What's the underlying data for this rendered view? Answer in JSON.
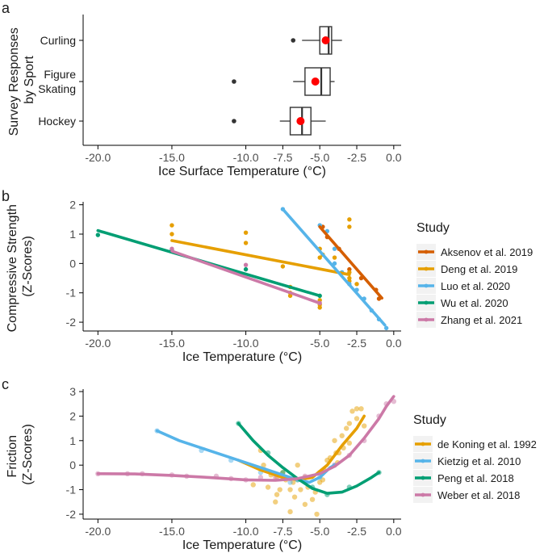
{
  "chart_data": [
    {
      "panel": "a",
      "type": "boxplot",
      "xlabel": "Ice Surface Temperature (°C)",
      "ylabel": "Survey Responses\nby Sport",
      "xlim": [
        -21,
        0.5
      ],
      "xticks": [
        -20.0,
        -15.0,
        -10.0,
        -7.5,
        -5.0,
        -2.5,
        0.0
      ],
      "xtick_labels": [
        "-20.0",
        "-15.0",
        "-10.0",
        "-7.5",
        "-5.0",
        "-2.5",
        "0.0"
      ],
      "categories": [
        "Curling",
        "Figure\nSkating",
        "Hockey"
      ],
      "boxes": [
        {
          "category": "Curling",
          "whisker_low": -6.2,
          "q1": -5.0,
          "median": -4.4,
          "q3": -4.2,
          "whisker_high": -3.5,
          "mean": -4.6,
          "outliers": [
            -6.8
          ]
        },
        {
          "category": "Figure\nSkating",
          "whisker_low": -6.8,
          "q1": -6.0,
          "median": -4.9,
          "q3": -4.3,
          "whisker_high": -4.0,
          "mean": -5.3,
          "outliers": [
            -10.8
          ]
        },
        {
          "category": "Hockey",
          "whisker_low": -7.7,
          "q1": -7.0,
          "median": -6.2,
          "q3": -5.6,
          "whisker_high": -4.6,
          "mean": -6.3,
          "outliers": [
            -10.8
          ]
        }
      ],
      "mean_color": "#ff0000"
    },
    {
      "panel": "b",
      "type": "scatter+line",
      "xlabel": "Ice Temperature (°C)",
      "ylabel": "Compressive Strength\n(Z-Scores)",
      "xlim": [
        -21,
        0.5
      ],
      "ylim": [
        -2.3,
        2.1
      ],
      "xticks": [
        -20.0,
        -15.0,
        -10.0,
        -5.0,
        -2.5,
        0.0
      ],
      "xtick_labels": [
        "-20.0",
        "-15.0",
        "-10.0",
        "-5.0",
        "-2.5",
        "0.0"
      ],
      "yticks": [
        -2,
        -1,
        0,
        1,
        2
      ],
      "legend_title": "Study",
      "series": [
        {
          "name": "Aksenov et al. 2019",
          "color": "#d55e00",
          "points": [
            [
              -4.8,
              1.25
            ],
            [
              -4.5,
              0.9
            ],
            [
              -3.7,
              0.5
            ],
            [
              -3.0,
              -0.2
            ],
            [
              -2.2,
              -0.5
            ],
            [
              -1.2,
              -0.9
            ],
            [
              -1.0,
              -1.2
            ]
          ],
          "line": [
            [
              -5.0,
              1.25
            ],
            [
              -0.8,
              -1.18
            ]
          ]
        },
        {
          "name": "Deng et al. 2019",
          "color": "#e69f00",
          "points": [
            [
              -15,
              1.3
            ],
            [
              -15,
              1.0
            ],
            [
              -10,
              1.05
            ],
            [
              -10,
              0.7
            ],
            [
              -7,
              -0.8
            ],
            [
              -7,
              -1.1
            ],
            [
              -7,
              -1.0
            ],
            [
              -7.5,
              -0.1
            ],
            [
              -5,
              0.5
            ],
            [
              -5,
              0.2
            ],
            [
              -5,
              -1.4
            ],
            [
              -5,
              -1.5
            ],
            [
              -5,
              -1.25
            ],
            [
              -4.8,
              0.3
            ],
            [
              -3,
              1.5
            ],
            [
              -3,
              1.25
            ],
            [
              -3,
              -0.3
            ],
            [
              -3,
              -0.5
            ],
            [
              -2.5,
              -0.7
            ],
            [
              -3,
              -0.6
            ],
            [
              -4.0,
              0.2
            ]
          ],
          "line": [
            [
              -15,
              0.78
            ],
            [
              -3,
              -0.38
            ]
          ]
        },
        {
          "name": "Luo et al. 2020",
          "color": "#56b4e9",
          "points": [
            [
              -7.5,
              1.85
            ],
            [
              -5,
              1.3
            ],
            [
              -4.5,
              1.1
            ],
            [
              -4,
              0.5
            ],
            [
              -4,
              0.0
            ],
            [
              -3.5,
              -0.3
            ],
            [
              -3,
              -0.7
            ],
            [
              -2.5,
              -0.9
            ],
            [
              -2,
              -1.2
            ],
            [
              -1.5,
              -1.6
            ],
            [
              -1,
              -1.9
            ],
            [
              -0.5,
              -2.2
            ]
          ],
          "line": [
            [
              -7.5,
              1.85
            ],
            [
              -0.6,
              -2.1
            ]
          ]
        },
        {
          "name": "Wu et al. 2020",
          "color": "#009e73",
          "points": [
            [
              -20,
              0.97
            ],
            [
              -15,
              0.45
            ],
            [
              -10,
              -0.2
            ],
            [
              -5,
              -1.1
            ]
          ],
          "line": [
            [
              -20,
              1.12
            ],
            [
              -5,
              -1.1
            ]
          ]
        },
        {
          "name": "Zhang et al. 2021",
          "color": "#cc79a7",
          "points": [
            [
              -15,
              0.5
            ],
            [
              -10,
              -0.05
            ],
            [
              -5,
              -1.35
            ]
          ],
          "line": [
            [
              -15,
              0.42
            ],
            [
              -5,
              -1.35
            ]
          ]
        }
      ]
    },
    {
      "panel": "c",
      "type": "scatter+loess",
      "xlabel": "Ice Temperature (°C)",
      "ylabel": "Friction\n(Z-Scores)",
      "xlim": [
        -21,
        0.5
      ],
      "ylim": [
        -2.2,
        3.1
      ],
      "xticks": [
        -20.0,
        -15.0,
        -10.0,
        -7.5,
        -5.0,
        -2.5,
        0.0
      ],
      "xtick_labels": [
        "-20.0",
        "-15.0",
        "-10.0",
        "-7.5",
        "-5.0",
        "-2.5",
        "0.0"
      ],
      "yticks": [
        -2,
        -1,
        0,
        1,
        2,
        3
      ],
      "legend_title": "Study",
      "series": [
        {
          "name": "de Koning et al. 1992",
          "color": "#e69f00",
          "points": [
            [
              -9.5,
              -0.8
            ],
            [
              -9,
              0.6
            ],
            [
              -8.8,
              0.0
            ],
            [
              -8.5,
              -0.9
            ],
            [
              -8.3,
              -0.4
            ],
            [
              -8,
              -1.5
            ],
            [
              -7.9,
              -1.2
            ],
            [
              -7.7,
              -1.0
            ],
            [
              -7.5,
              -0.3
            ],
            [
              -7.3,
              -0.6
            ],
            [
              -7,
              -1.9
            ],
            [
              -7,
              -1.0
            ],
            [
              -6.8,
              -0.7
            ],
            [
              -6.5,
              0.0
            ],
            [
              -6.3,
              -1.0
            ],
            [
              -6,
              -1.6
            ],
            [
              -6,
              -0.5
            ],
            [
              -5.8,
              -0.9
            ],
            [
              -5.5,
              -1.4
            ],
            [
              -5.3,
              -1.1
            ],
            [
              -5.2,
              -2.0
            ],
            [
              -5,
              -0.3
            ],
            [
              -5,
              -0.7
            ],
            [
              -4.8,
              -0.6
            ],
            [
              -4.5,
              0.2
            ],
            [
              -4.3,
              0.3
            ],
            [
              -4.0,
              1.0
            ],
            [
              -3.9,
              0.5
            ],
            [
              -3.8,
              0.1
            ],
            [
              -3.5,
              1.2
            ],
            [
              -3.4,
              0.7
            ],
            [
              -3.2,
              1.5
            ],
            [
              -3,
              1.7
            ],
            [
              -3,
              0.9
            ],
            [
              -2.8,
              2.2
            ],
            [
              -2.5,
              2.3
            ],
            [
              -2.5,
              1.9
            ],
            [
              -2.2,
              2.3
            ],
            [
              -2.0,
              1.6
            ],
            [
              -8.7,
              -0.2
            ],
            [
              -6.7,
              -1.3
            ],
            [
              -7.9,
              -0.5
            ],
            [
              -4.7,
              -0.2
            ],
            [
              -3.7,
              0.5
            ]
          ],
          "line": [
            [
              -10.5,
              0.2
            ],
            [
              -9,
              -0.2
            ],
            [
              -7.5,
              -0.5
            ],
            [
              -6.5,
              -0.6
            ],
            [
              -5.5,
              -0.5
            ],
            [
              -4.5,
              0.0
            ],
            [
              -3.5,
              0.8
            ],
            [
              -2.5,
              1.5
            ],
            [
              -2.0,
              2.0
            ]
          ]
        },
        {
          "name": "Kietzig et al. 2010",
          "color": "#56b4e9",
          "points": [
            [
              -16,
              1.4
            ],
            [
              -13,
              0.6
            ],
            [
              -11,
              0.2
            ],
            [
              -9,
              -0.3
            ],
            [
              -7,
              -0.7
            ],
            [
              -5,
              -0.5
            ],
            [
              -4,
              0.0
            ]
          ],
          "line": [
            [
              -16,
              1.4
            ],
            [
              -14.5,
              1.0
            ],
            [
              -13,
              0.7
            ],
            [
              -11,
              0.3
            ],
            [
              -9,
              -0.1
            ],
            [
              -7.5,
              -0.4
            ],
            [
              -6.5,
              -0.6
            ],
            [
              -5.7,
              -0.7
            ],
            [
              -5,
              -0.5
            ],
            [
              -4.3,
              -0.1
            ],
            [
              -4.0,
              0.0
            ]
          ]
        },
        {
          "name": "Peng et al. 2018",
          "color": "#009e73",
          "points": [
            [
              -10.5,
              1.7
            ],
            [
              -8.5,
              0.5
            ],
            [
              -7.5,
              -0.3
            ],
            [
              -6.5,
              -0.6
            ],
            [
              -5.5,
              -0.9
            ],
            [
              -4.5,
              -1.2
            ],
            [
              -3,
              -0.9
            ],
            [
              -1,
              -0.3
            ]
          ],
          "line": [
            [
              -10.5,
              1.7
            ],
            [
              -9.5,
              1.0
            ],
            [
              -8.5,
              0.4
            ],
            [
              -7.5,
              -0.1
            ],
            [
              -6.5,
              -0.55
            ],
            [
              -5.5,
              -0.95
            ],
            [
              -4.5,
              -1.15
            ],
            [
              -3.5,
              -1.1
            ],
            [
              -2.5,
              -0.85
            ],
            [
              -1.5,
              -0.5
            ],
            [
              -1.0,
              -0.3
            ]
          ]
        },
        {
          "name": "Weber et al. 2018",
          "color": "#cc79a7",
          "points": [
            [
              -20,
              -0.35
            ],
            [
              -18,
              -0.35
            ],
            [
              -17,
              -0.35
            ],
            [
              -15,
              -0.4
            ],
            [
              -14,
              -0.45
            ],
            [
              -12,
              -0.45
            ],
            [
              -11,
              -0.55
            ],
            [
              -10,
              -0.6
            ],
            [
              -9,
              -0.5
            ],
            [
              -8,
              -0.5
            ],
            [
              -7,
              -0.55
            ],
            [
              -6,
              -0.45
            ],
            [
              -5,
              -0.3
            ],
            [
              -4,
              0.0
            ],
            [
              -3,
              0.4
            ],
            [
              -2,
              1.0
            ],
            [
              -1,
              2.0
            ],
            [
              -0.5,
              2.5
            ],
            [
              0,
              2.6
            ]
          ],
          "line": [
            [
              -20,
              -0.35
            ],
            [
              -17.5,
              -0.36
            ],
            [
              -15,
              -0.42
            ],
            [
              -12.5,
              -0.5
            ],
            [
              -10,
              -0.6
            ],
            [
              -8,
              -0.62
            ],
            [
              -6.5,
              -0.55
            ],
            [
              -5,
              -0.35
            ],
            [
              -4,
              -0.05
            ],
            [
              -3,
              0.4
            ],
            [
              -2,
              1.1
            ],
            [
              -1,
              1.9
            ],
            [
              -0.5,
              2.4
            ],
            [
              0,
              2.8
            ]
          ]
        }
      ]
    }
  ]
}
